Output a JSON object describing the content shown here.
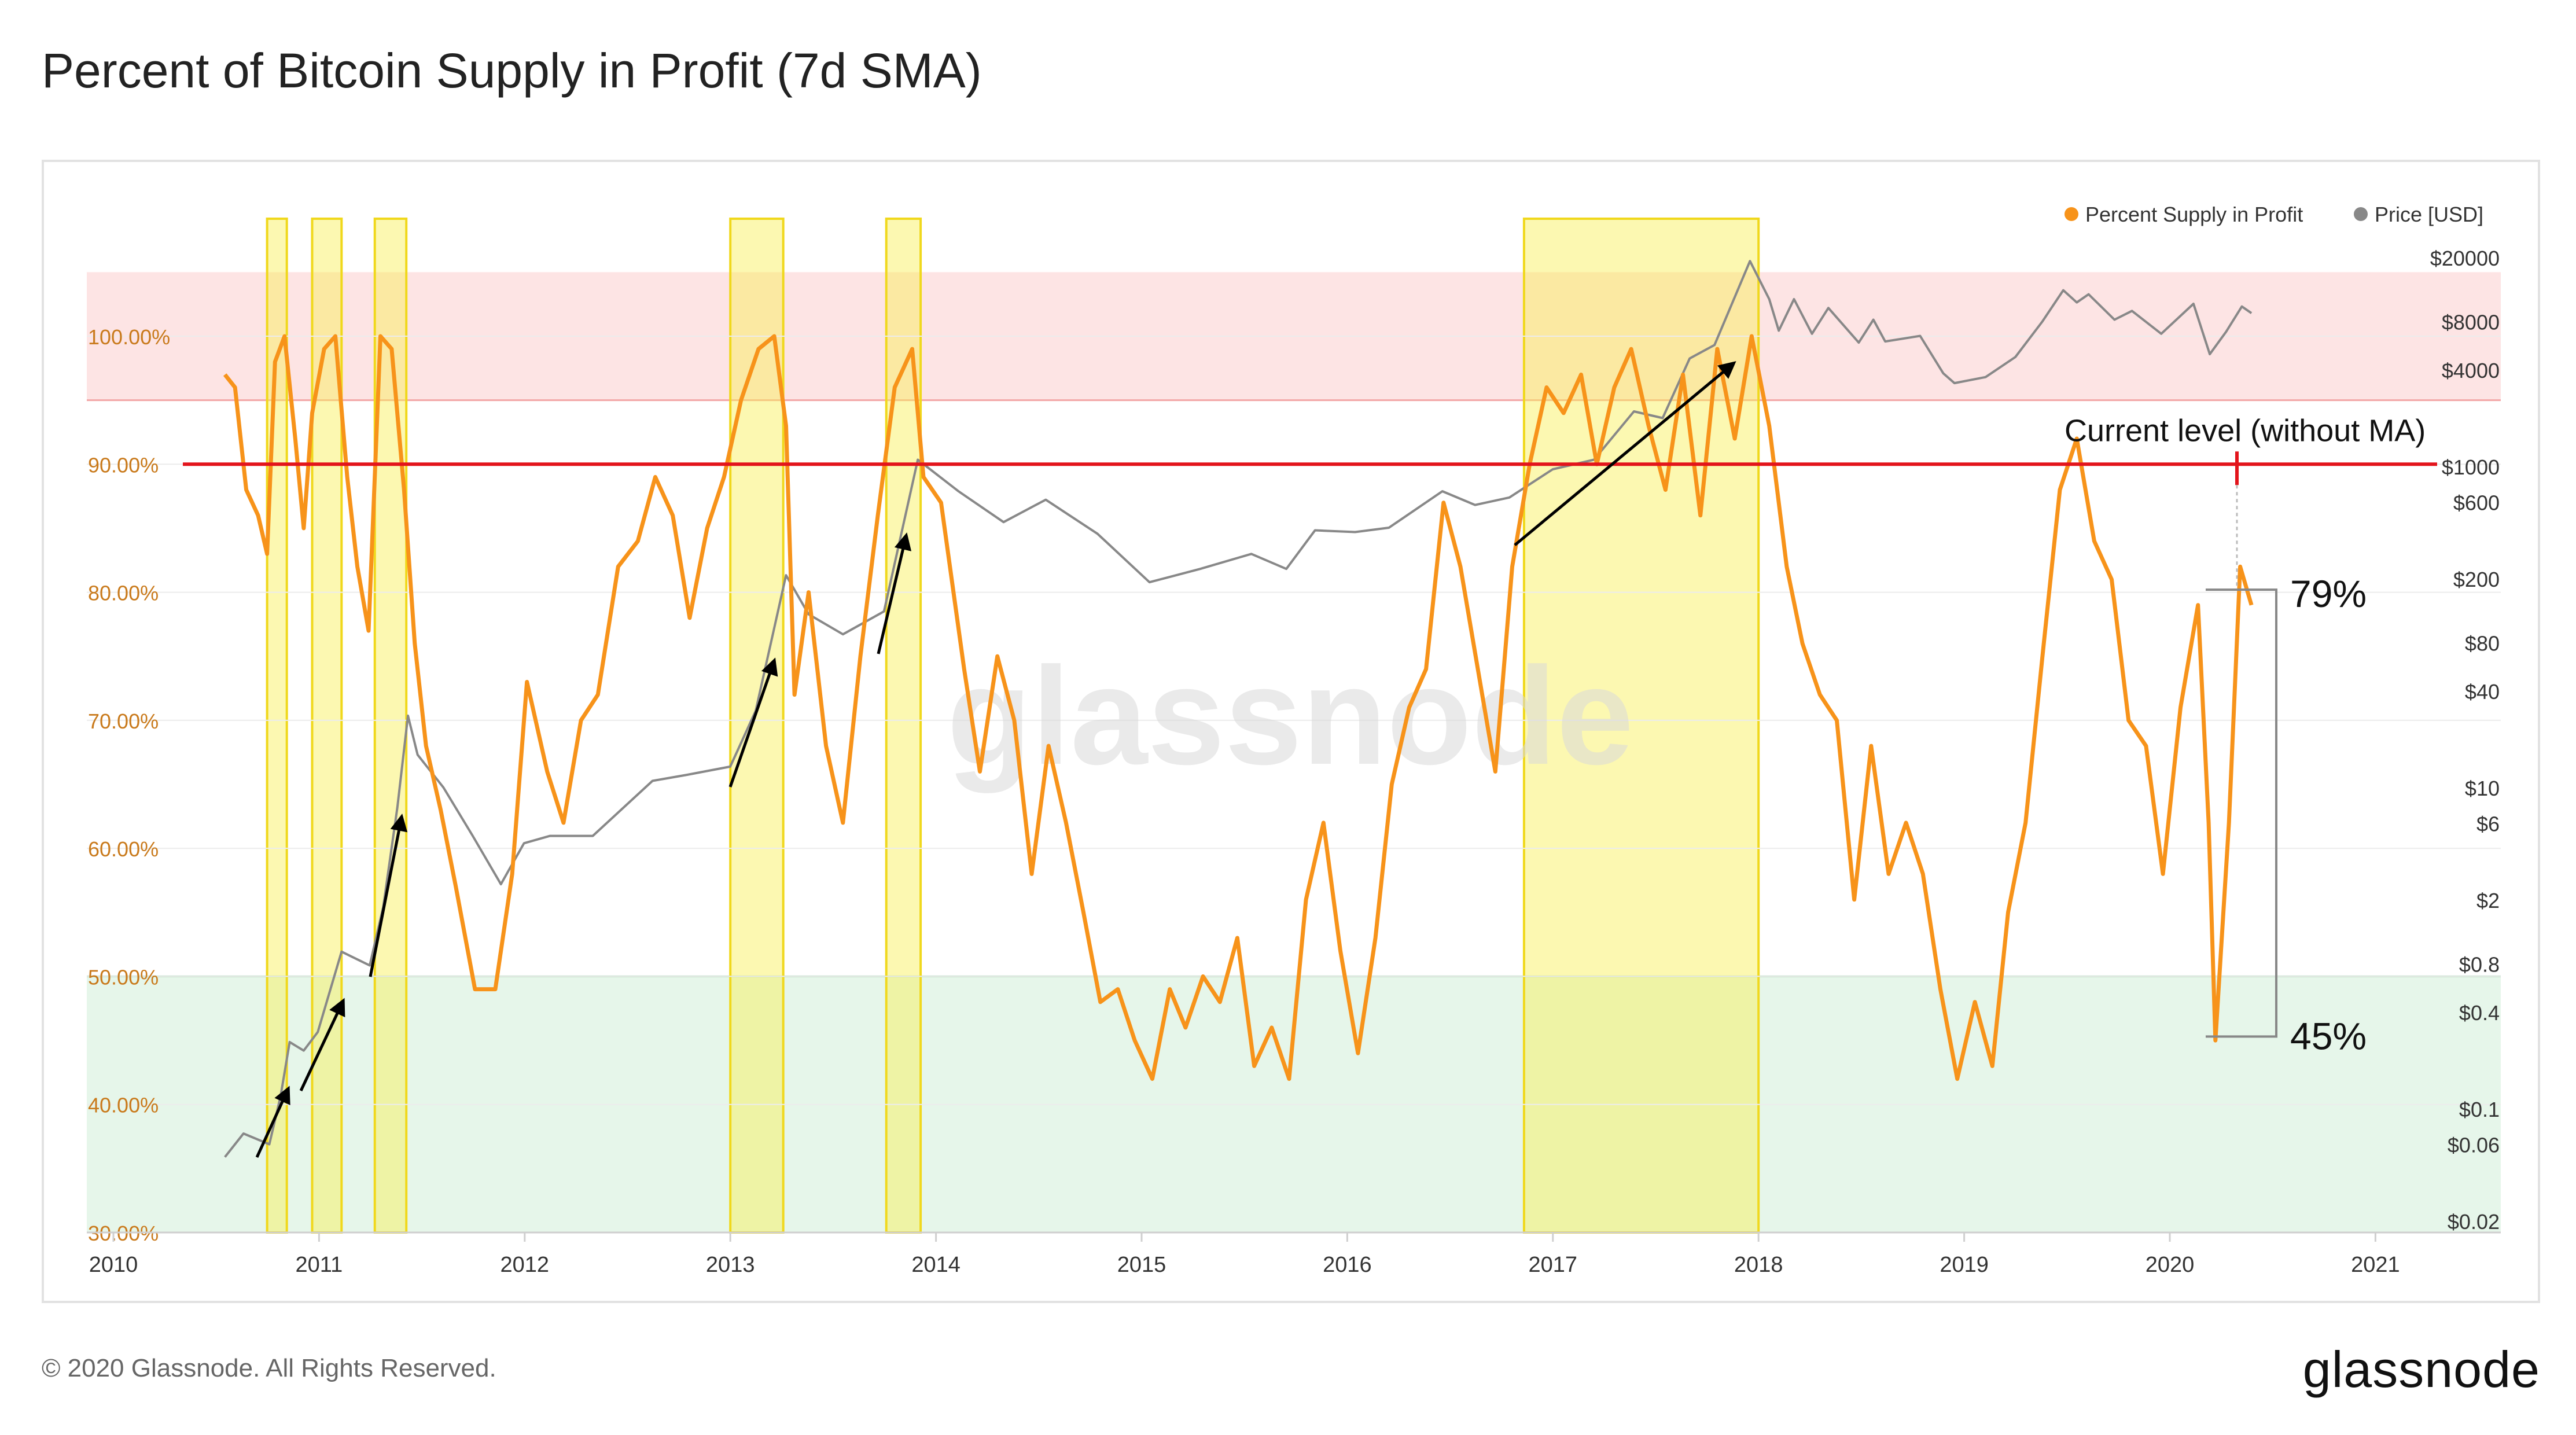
{
  "title": "Percent of Bitcoin Supply in Profit (7d SMA)",
  "footer": {
    "copyright": "© 2020 Glassnode. All Rights Reserved.",
    "brand": "glassnode"
  },
  "watermark": "glassnode",
  "chart_data": {
    "type": "line",
    "title": "Percent of Bitcoin Supply in Profit (7d SMA)",
    "x_range": [
      "2010",
      "2021-06"
    ],
    "x_ticks": [
      "2010",
      "2011",
      "2012",
      "2013",
      "2014",
      "2015",
      "2016",
      "2017",
      "2018",
      "2019",
      "2020",
      "2021"
    ],
    "y_left": {
      "ticks": [
        "30.00%",
        "40.00%",
        "50.00%",
        "60.00%",
        "70.00%",
        "80.00%",
        "90.00%",
        "100.00%"
      ],
      "range": [
        30,
        105
      ]
    },
    "y_right": {
      "scale": "log",
      "ticks": [
        "$20000",
        "$8000",
        "$4000",
        "$1000",
        "$600",
        "$200",
        "$80",
        "$40",
        "$10",
        "$6",
        "$2",
        "$0.8",
        "$0.4",
        "$0.1",
        "$0.06",
        "$0.02"
      ]
    },
    "legend": {
      "placement": "top-right",
      "items": [
        {
          "name": "Percent Supply in Profit",
          "color": "#f7931a"
        },
        {
          "name": "Price [USD]",
          "color": "#888888"
        }
      ]
    },
    "zones": [
      {
        "from": 95,
        "to": 105,
        "color": "#fde4e4"
      },
      {
        "from": 30,
        "to": 50,
        "color": "#e6f6ea"
      }
    ],
    "highlight_periods": [
      [
        "2010-10-01",
        "2010-11-05"
      ],
      [
        "2010-12-20",
        "2011-02-10"
      ],
      [
        "2011-04-10",
        "2011-06-05"
      ],
      [
        "2013-01-01",
        "2013-04-05"
      ],
      [
        "2013-10-05",
        "2013-12-05"
      ],
      [
        "2016-11-10",
        "2018-01-01"
      ]
    ],
    "reference_line": {
      "value": 90,
      "color": "#e3141b",
      "label": "Current level (without MA)"
    },
    "range_annotation": {
      "high": "79%",
      "low": "45%"
    },
    "series": [
      {
        "name": "Percent Supply in Profit",
        "color": "#f7931a",
        "points": [
          [
            "2010-07-18",
            97
          ],
          [
            "2010-08-05",
            96
          ],
          [
            "2010-08-25",
            88
          ],
          [
            "2010-09-15",
            86
          ],
          [
            "2010-10-01",
            83
          ],
          [
            "2010-10-15",
            98
          ],
          [
            "2010-11-01",
            100
          ],
          [
            "2010-11-20",
            92
          ],
          [
            "2010-12-05",
            85
          ],
          [
            "2010-12-20",
            94
          ],
          [
            "2011-01-10",
            99
          ],
          [
            "2011-01-30",
            100
          ],
          [
            "2011-02-20",
            89
          ],
          [
            "2011-03-10",
            82
          ],
          [
            "2011-03-30",
            77
          ],
          [
            "2011-04-20",
            100
          ],
          [
            "2011-05-10",
            99
          ],
          [
            "2011-06-01",
            88
          ],
          [
            "2011-06-20",
            76
          ],
          [
            "2011-07-10",
            68
          ],
          [
            "2011-08-05",
            63
          ],
          [
            "2011-09-01",
            57
          ],
          [
            "2011-10-05",
            49
          ],
          [
            "2011-11-10",
            49
          ],
          [
            "2011-12-10",
            58
          ],
          [
            "2012-01-05",
            73
          ],
          [
            "2012-02-10",
            66
          ],
          [
            "2012-03-10",
            62
          ],
          [
            "2012-04-10",
            70
          ],
          [
            "2012-05-10",
            72
          ],
          [
            "2012-06-15",
            82
          ],
          [
            "2012-07-20",
            84
          ],
          [
            "2012-08-20",
            89
          ],
          [
            "2012-09-20",
            86
          ],
          [
            "2012-10-20",
            78
          ],
          [
            "2012-11-20",
            85
          ],
          [
            "2012-12-20",
            89
          ],
          [
            "2013-01-20",
            95
          ],
          [
            "2013-02-20",
            99
          ],
          [
            "2013-03-20",
            100
          ],
          [
            "2013-04-10",
            93
          ],
          [
            "2013-04-25",
            72
          ],
          [
            "2013-05-20",
            80
          ],
          [
            "2013-06-20",
            68
          ],
          [
            "2013-07-20",
            62
          ],
          [
            "2013-08-20",
            75
          ],
          [
            "2013-09-20",
            86
          ],
          [
            "2013-10-20",
            96
          ],
          [
            "2013-11-20",
            99
          ],
          [
            "2013-12-10",
            89
          ],
          [
            "2014-01-10",
            87
          ],
          [
            "2014-02-20",
            74
          ],
          [
            "2014-03-20",
            66
          ],
          [
            "2014-04-20",
            75
          ],
          [
            "2014-05-20",
            70
          ],
          [
            "2014-06-20",
            58
          ],
          [
            "2014-07-20",
            68
          ],
          [
            "2014-08-20",
            62
          ],
          [
            "2014-09-20",
            55
          ],
          [
            "2014-10-20",
            48
          ],
          [
            "2014-11-20",
            49
          ],
          [
            "2014-12-20",
            45
          ],
          [
            "2015-01-20",
            42
          ],
          [
            "2015-02-20",
            49
          ],
          [
            "2015-03-20",
            46
          ],
          [
            "2015-04-20",
            50
          ],
          [
            "2015-05-20",
            48
          ],
          [
            "2015-06-20",
            53
          ],
          [
            "2015-07-20",
            43
          ],
          [
            "2015-08-20",
            46
          ],
          [
            "2015-09-20",
            42
          ],
          [
            "2015-10-20",
            56
          ],
          [
            "2015-11-20",
            62
          ],
          [
            "2015-12-20",
            52
          ],
          [
            "2016-01-20",
            44
          ],
          [
            "2016-02-20",
            53
          ],
          [
            "2016-03-20",
            65
          ],
          [
            "2016-04-20",
            71
          ],
          [
            "2016-05-20",
            74
          ],
          [
            "2016-06-20",
            87
          ],
          [
            "2016-07-20",
            82
          ],
          [
            "2016-08-20",
            74
          ],
          [
            "2016-09-20",
            66
          ],
          [
            "2016-10-20",
            82
          ],
          [
            "2016-11-20",
            90
          ],
          [
            "2016-12-20",
            96
          ],
          [
            "2017-01-20",
            94
          ],
          [
            "2017-02-20",
            97
          ],
          [
            "2017-03-20",
            90
          ],
          [
            "2017-04-20",
            96
          ],
          [
            "2017-05-20",
            99
          ],
          [
            "2017-06-20",
            93
          ],
          [
            "2017-07-20",
            88
          ],
          [
            "2017-08-20",
            97
          ],
          [
            "2017-09-20",
            86
          ],
          [
            "2017-10-20",
            99
          ],
          [
            "2017-11-20",
            92
          ],
          [
            "2017-12-20",
            100
          ],
          [
            "2018-01-20",
            93
          ],
          [
            "2018-02-20",
            82
          ],
          [
            "2018-03-20",
            76
          ],
          [
            "2018-04-20",
            72
          ],
          [
            "2018-05-20",
            70
          ],
          [
            "2018-06-20",
            56
          ],
          [
            "2018-07-20",
            68
          ],
          [
            "2018-08-20",
            58
          ],
          [
            "2018-09-20",
            62
          ],
          [
            "2018-10-20",
            58
          ],
          [
            "2018-11-20",
            49
          ],
          [
            "2018-12-20",
            42
          ],
          [
            "2019-01-20",
            48
          ],
          [
            "2019-02-20",
            43
          ],
          [
            "2019-03-20",
            55
          ],
          [
            "2019-04-20",
            62
          ],
          [
            "2019-05-20",
            75
          ],
          [
            "2019-06-20",
            88
          ],
          [
            "2019-07-20",
            92
          ],
          [
            "2019-08-20",
            84
          ],
          [
            "2019-09-20",
            81
          ],
          [
            "2019-10-20",
            70
          ],
          [
            "2019-11-20",
            68
          ],
          [
            "2019-12-20",
            58
          ],
          [
            "2020-01-20",
            71
          ],
          [
            "2020-02-20",
            79
          ],
          [
            "2020-03-10",
            62
          ],
          [
            "2020-03-22",
            45
          ],
          [
            "2020-04-15",
            62
          ],
          [
            "2020-05-05",
            82
          ],
          [
            "2020-05-25",
            79
          ]
        ]
      },
      {
        "name": "Price [USD]",
        "color": "#888888",
        "points": [
          [
            "2010-07-18",
            0.05
          ],
          [
            "2010-08-20",
            0.07
          ],
          [
            "2010-10-05",
            0.06
          ],
          [
            "2010-10-25",
            0.12
          ],
          [
            "2010-11-10",
            0.26
          ],
          [
            "2010-12-05",
            0.23
          ],
          [
            "2010-12-30",
            0.3
          ],
          [
            "2011-02-10",
            0.95
          ],
          [
            "2011-03-10",
            0.85
          ],
          [
            "2011-04-01",
            0.78
          ],
          [
            "2011-04-25",
            1.8
          ],
          [
            "2011-05-20",
            7.5
          ],
          [
            "2011-06-08",
            28
          ],
          [
            "2011-06-25",
            16
          ],
          [
            "2011-08-10",
            10
          ],
          [
            "2011-10-01",
            5
          ],
          [
            "2011-11-20",
            2.5
          ],
          [
            "2011-12-31",
            4.5
          ],
          [
            "2012-02-15",
            5
          ],
          [
            "2012-05-01",
            5
          ],
          [
            "2012-08-15",
            11
          ],
          [
            "2012-10-15",
            12
          ],
          [
            "2012-12-31",
            13.5
          ],
          [
            "2013-02-15",
            30
          ],
          [
            "2013-04-10",
            210
          ],
          [
            "2013-05-20",
            120
          ],
          [
            "2013-07-20",
            90
          ],
          [
            "2013-10-01",
            125
          ],
          [
            "2013-11-30",
            1100
          ],
          [
            "2014-02-10",
            700
          ],
          [
            "2014-05-01",
            450
          ],
          [
            "2014-07-15",
            620
          ],
          [
            "2014-10-15",
            380
          ],
          [
            "2015-01-15",
            190
          ],
          [
            "2015-04-15",
            230
          ],
          [
            "2015-07-15",
            285
          ],
          [
            "2015-09-15",
            230
          ],
          [
            "2015-11-05",
            400
          ],
          [
            "2016-01-15",
            390
          ],
          [
            "2016-03-15",
            415
          ],
          [
            "2016-06-18",
            700
          ],
          [
            "2016-08-15",
            575
          ],
          [
            "2016-10-15",
            640
          ],
          [
            "2016-12-31",
            960
          ],
          [
            "2017-03-15",
            1100
          ],
          [
            "2017-05-25",
            2200
          ],
          [
            "2017-07-15",
            2000
          ],
          [
            "2017-09-01",
            4700
          ],
          [
            "2017-10-15",
            5700
          ],
          [
            "2017-12-17",
            19000
          ],
          [
            "2018-01-20",
            11000
          ],
          [
            "2018-02-06",
            7000
          ],
          [
            "2018-03-05",
            11000
          ],
          [
            "2018-04-06",
            6700
          ],
          [
            "2018-05-05",
            9700
          ],
          [
            "2018-06-28",
            5900
          ],
          [
            "2018-07-24",
            8200
          ],
          [
            "2018-08-14",
            6000
          ],
          [
            "2018-10-15",
            6500
          ],
          [
            "2018-11-25",
            3800
          ],
          [
            "2018-12-15",
            3300
          ],
          [
            "2019-02-08",
            3600
          ],
          [
            "2019-04-02",
            4800
          ],
          [
            "2019-05-20",
            8000
          ],
          [
            "2019-06-26",
            12500
          ],
          [
            "2019-07-20",
            10500
          ],
          [
            "2019-08-10",
            11800
          ],
          [
            "2019-09-25",
            8200
          ],
          [
            "2019-10-26",
            9300
          ],
          [
            "2019-12-17",
            6700
          ],
          [
            "2020-02-12",
            10300
          ],
          [
            "2020-03-12",
            5000
          ],
          [
            "2020-04-10",
            6900
          ],
          [
            "2020-05-08",
            9900
          ],
          [
            "2020-05-25",
            9000
          ]
        ]
      }
    ]
  }
}
